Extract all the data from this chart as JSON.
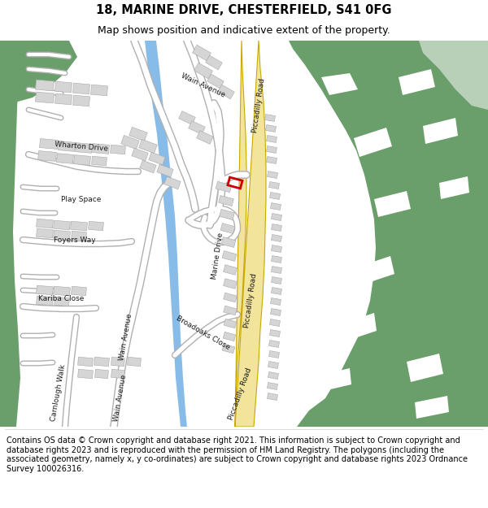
{
  "title_line1": "18, MARINE DRIVE, CHESTERFIELD, S41 0FG",
  "title_line2": "Map shows position and indicative extent of the property.",
  "footer_text": "Contains OS data © Crown copyright and database right 2021. This information is subject to Crown copyright and database rights 2023 and is reproduced with the permission of HM Land Registry. The polygons (including the associated geometry, namely x, y co-ordinates) are subject to Crown copyright and database rights 2023 Ordnance Survey 100026316.",
  "bg_color": "#ffffff",
  "map_bg": "#f0f0f0",
  "green_dark": "#6a9e6a",
  "green_light": "#b8cfb8",
  "road_yellow": "#f2e49a",
  "road_border": "#c8a800",
  "water_color": "#88bce8",
  "red_plot": "#cc0000",
  "title_fontsize": 10.5,
  "subtitle_fontsize": 9,
  "footer_fontsize": 7
}
